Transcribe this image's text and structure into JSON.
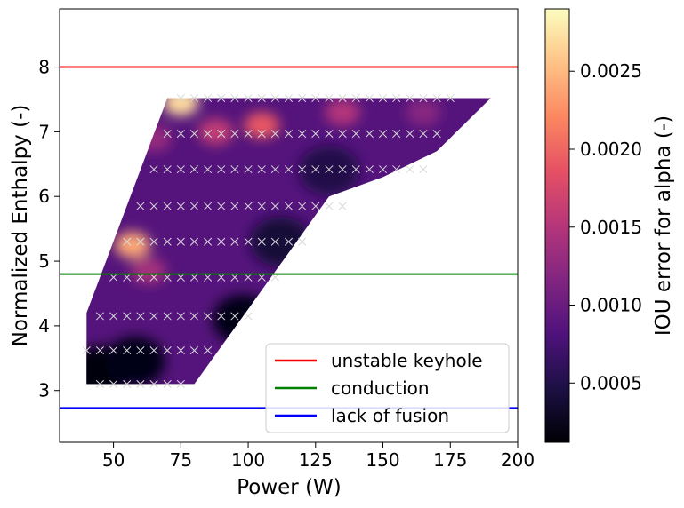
{
  "chart_data": {
    "type": "heatmap",
    "title": "",
    "xlabel": "Power (W)",
    "ylabel": "Normalized Enthalpy (-)",
    "xlim": [
      30,
      200
    ],
    "ylim": [
      2.2,
      8.9
    ],
    "x_ticks": [
      50,
      75,
      100,
      125,
      150,
      175,
      200
    ],
    "y_ticks": [
      3,
      4,
      5,
      6,
      7,
      8
    ],
    "colorbar": {
      "label": "IOU error for alpha (-)",
      "range": [
        0.00012,
        0.0029
      ],
      "ticks": [
        0.0005,
        0.001,
        0.0015,
        0.002,
        0.0025
      ],
      "tick_labels": [
        "0.0005",
        "0.0010",
        "0.0015",
        "0.0020",
        "0.0025"
      ],
      "colormap": [
        "#000004",
        "#1c1044",
        "#4f127b",
        "#812581",
        "#b5367a",
        "#e55064",
        "#fb8761",
        "#fec287",
        "#fcfdbf"
      ]
    },
    "horizontal_lines": [
      {
        "name": "unstable keyhole",
        "y": 8.0,
        "color": "#ff0000"
      },
      {
        "name": "conduction",
        "y": 4.8,
        "color": "#008000"
      },
      {
        "name": "lack of fusion",
        "y": 2.73,
        "color": "#0000ff"
      }
    ],
    "legend": {
      "position": "lower-right",
      "entries": [
        "unstable keyhole",
        "conduction",
        "lack of fusion"
      ]
    },
    "sampled_region_outline": [
      [
        40,
        3.1
      ],
      [
        80,
        3.1
      ],
      [
        130,
        6.0
      ],
      [
        150,
        6.3
      ],
      [
        170,
        6.7
      ],
      [
        190,
        7.52
      ],
      [
        70,
        7.52
      ],
      [
        40,
        4.2
      ]
    ],
    "error_hotspots": [
      {
        "x": 75,
        "y": 7.45,
        "value": 0.0027
      },
      {
        "x": 57,
        "y": 5.25,
        "value": 0.0024
      },
      {
        "x": 105,
        "y": 7.1,
        "value": 0.0019
      },
      {
        "x": 88,
        "y": 7.0,
        "value": 0.0016
      },
      {
        "x": 63,
        "y": 4.85,
        "value": 0.0014
      },
      {
        "x": 135,
        "y": 7.3,
        "value": 0.0015
      },
      {
        "x": 165,
        "y": 7.3,
        "value": 0.0012
      },
      {
        "x": 65,
        "y": 6.9,
        "value": 0.0013
      }
    ],
    "error_background": 0.00085,
    "error_lowspots": [
      {
        "x": 45,
        "y": 3.3,
        "value": 0.00015
      },
      {
        "x": 58,
        "y": 3.45,
        "value": 0.0002
      },
      {
        "x": 98,
        "y": 4.1,
        "value": 0.0002
      },
      {
        "x": 112,
        "y": 5.3,
        "value": 0.0004
      },
      {
        "x": 130,
        "y": 6.4,
        "value": 0.0005
      }
    ],
    "sample_points": {
      "marker": "x",
      "rows": [
        {
          "y": 3.1,
          "x": [
            45,
            50,
            55,
            60,
            65,
            70,
            75
          ]
        },
        {
          "y": 3.62,
          "x": [
            40,
            45,
            50,
            55,
            60,
            65,
            70,
            75,
            80,
            85
          ]
        },
        {
          "y": 4.15,
          "x": [
            45,
            50,
            55,
            60,
            65,
            70,
            75,
            80,
            85,
            90,
            95,
            100
          ]
        },
        {
          "y": 4.75,
          "x": [
            50,
            55,
            60,
            65,
            70,
            75,
            80,
            85,
            90,
            95,
            100,
            105,
            110
          ]
        },
        {
          "y": 5.3,
          "x": [
            55,
            60,
            65,
            70,
            75,
            80,
            85,
            90,
            95,
            100,
            105,
            110,
            115,
            120
          ]
        },
        {
          "y": 5.85,
          "x": [
            60,
            65,
            70,
            75,
            80,
            85,
            90,
            95,
            100,
            105,
            110,
            115,
            120,
            125,
            130,
            135
          ]
        },
        {
          "y": 6.42,
          "x": [
            65,
            70,
            75,
            80,
            85,
            90,
            95,
            100,
            105,
            110,
            115,
            120,
            125,
            130,
            135,
            140,
            145,
            150,
            155,
            160,
            165
          ]
        },
        {
          "y": 6.97,
          "x": [
            70,
            75,
            80,
            85,
            90,
            95,
            100,
            105,
            110,
            115,
            120,
            125,
            130,
            135,
            140,
            145,
            150,
            155,
            160,
            165,
            170
          ]
        },
        {
          "y": 7.52,
          "x": [
            75,
            80,
            85,
            90,
            95,
            100,
            105,
            110,
            115,
            120,
            125,
            130,
            135,
            140,
            145,
            150,
            155,
            160,
            165,
            170,
            175
          ]
        }
      ]
    }
  }
}
